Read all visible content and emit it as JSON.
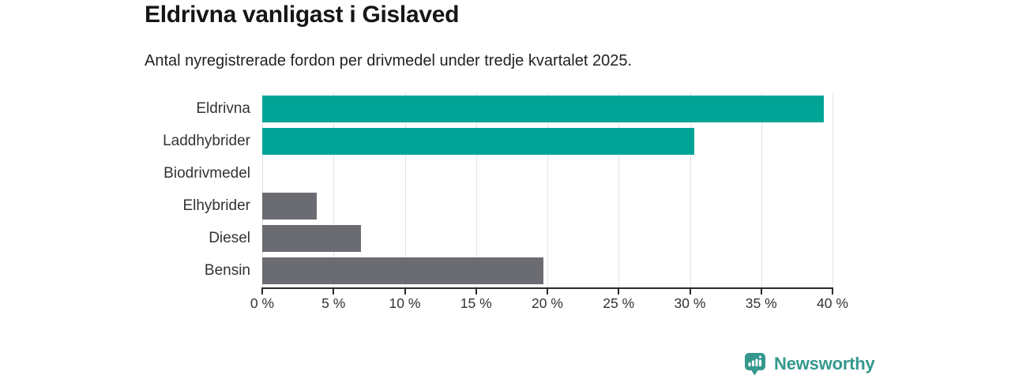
{
  "title": "Eldrivna vanligast i Gislaved",
  "subtitle": "Antal nyregistrerade fordon per drivmedel under tredje kvartalet 2025.",
  "branding": {
    "logo_text": "Newsworthy",
    "logo_icon": "bar-chart-speech-bubble-icon",
    "brand_color": "#35988d"
  },
  "colors": {
    "electric_teal": "#00a496",
    "fossil_gray": "#6b6b72",
    "gridline": "#e3e3e3",
    "axis": "#2b2b2b",
    "text": "#333333"
  },
  "chart_data": {
    "type": "bar",
    "orientation": "horizontal",
    "title": "Eldrivna vanligast i Gislaved",
    "subtitle": "Antal nyregistrerade fordon per drivmedel under tredje kvartalet 2025.",
    "categories": [
      "Eldrivna",
      "Laddhybrider",
      "Biodrivmedel",
      "Elhybrider",
      "Diesel",
      "Bensin"
    ],
    "values": [
      39.4,
      30.3,
      0,
      3.8,
      6.9,
      19.7
    ],
    "unit": "%",
    "bar_colors": [
      "#00a496",
      "#00a496",
      "#6b6b72",
      "#6b6b72",
      "#6b6b72",
      "#6b6b72"
    ],
    "xlim": [
      0,
      40
    ],
    "x_ticks": [
      "0 %",
      "5 %",
      "10 %",
      "15 %",
      "20 %",
      "25 %",
      "30 %",
      "35 %",
      "40 %"
    ],
    "grid": true,
    "legend": false
  }
}
